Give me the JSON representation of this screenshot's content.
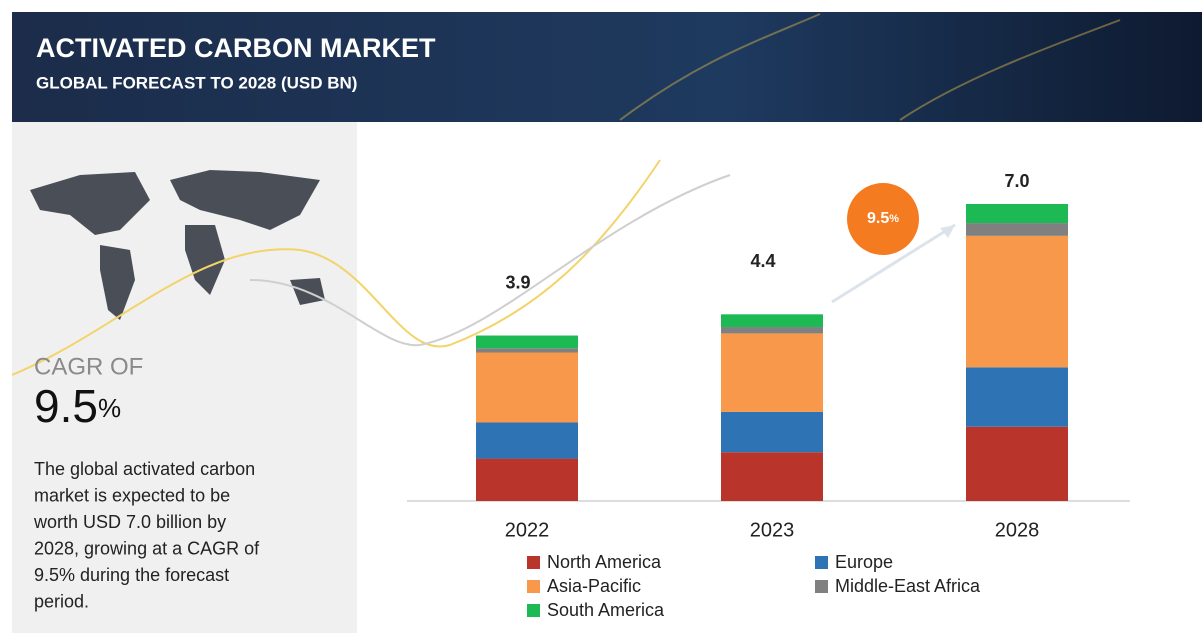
{
  "header": {
    "title": "ACTIVATED CARBON MARKET",
    "subtitle": "GLOBAL FORECAST TO 2028 (USD BN)"
  },
  "sidebar": {
    "cagr_label": "CAGR OF",
    "cagr_value": "9.5",
    "cagr_unit": "%",
    "description": [
      "The global activated carbon",
      "market is expected to be",
      "worth USD 7.0 billion by",
      "2028, growing at a CAGR of",
      "9.5% during the forecast",
      "period."
    ]
  },
  "badge": {
    "value": "9.5",
    "unit": "%"
  },
  "chart_data": {
    "type": "stacked-bar",
    "categories": [
      "2022",
      "2023",
      "2028"
    ],
    "series": [
      {
        "name": "North America",
        "color": "#b9342a",
        "values": [
          1.0,
          1.15,
          1.75
        ]
      },
      {
        "name": "Europe",
        "color": "#2e74b5",
        "values": [
          0.85,
          0.95,
          1.4
        ]
      },
      {
        "name": "Asia-Pacific",
        "color": "#f7984a",
        "values": [
          1.65,
          1.85,
          3.1
        ]
      },
      {
        "name": "Middle-East Africa",
        "color": "#808080",
        "values": [
          0.1,
          0.15,
          0.3
        ]
      },
      {
        "name": "South America",
        "color": "#1db954",
        "values": [
          0.3,
          0.3,
          0.45
        ]
      }
    ],
    "totals": [
      3.9,
      4.4,
      7
    ],
    "total_labels": [
      "3.9",
      "4.4",
      "7.0"
    ]
  }
}
